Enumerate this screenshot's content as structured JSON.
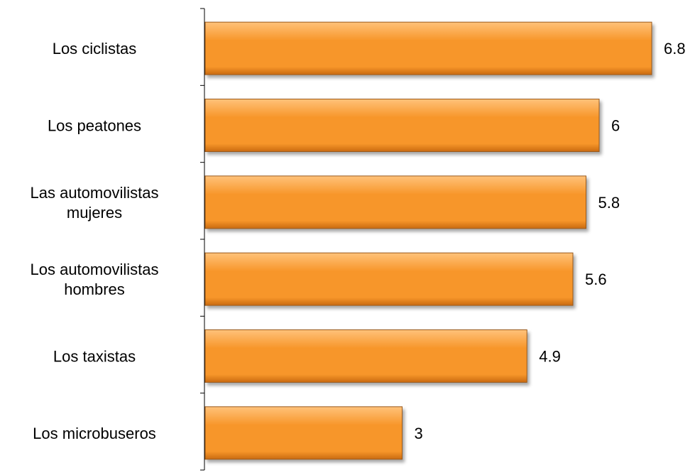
{
  "chart_data": {
    "type": "bar",
    "orientation": "horizontal",
    "categories": [
      [
        "Los ciclistas"
      ],
      [
        "Los peatones"
      ],
      [
        "Las automovilistas",
        "mujeres"
      ],
      [
        "Los automovilistas",
        "hombres"
      ],
      [
        "Los taxistas"
      ],
      [
        "Los microbuseros"
      ]
    ],
    "values": [
      6.8,
      6,
      5.8,
      5.6,
      4.9,
      3
    ],
    "value_labels": [
      "6.8",
      "6",
      "5.8",
      "5.6",
      "4.9",
      "3"
    ],
    "title": "",
    "xlabel": "",
    "ylabel": "",
    "xlim": [
      0,
      7.1
    ],
    "grid": false,
    "legend": "none",
    "colors": {
      "bar_light": "#FFC27A",
      "bar_mid": "#F7962A",
      "bar_dark": "#C96A10",
      "bar_edge": "#9A5A1C",
      "axis": "#000000"
    }
  }
}
